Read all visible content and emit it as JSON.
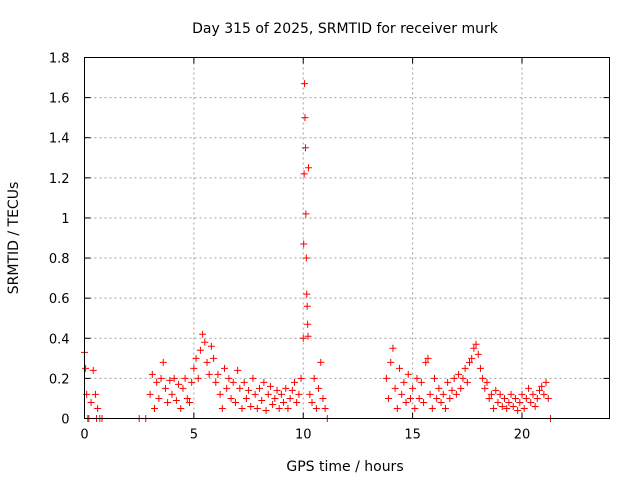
{
  "chart_data": {
    "type": "scatter",
    "title": "Day 315 of 2025, SRMTID for receiver murk",
    "xlabel": "GPS time / hours",
    "ylabel": "SRMTID / TECUs",
    "xlim": [
      0,
      24
    ],
    "ylim": [
      0,
      1.8
    ],
    "xticks": [
      0,
      5,
      10,
      15,
      20
    ],
    "yticks": [
      0,
      0.2,
      0.4,
      0.6,
      0.8,
      1,
      1.2,
      1.4,
      1.6,
      1.8
    ],
    "xtick_labels": [
      "0",
      "5",
      "10",
      "15",
      "20"
    ],
    "ytick_labels": [
      "0",
      "0.2",
      "0.4",
      "0.6",
      "0.8",
      "1",
      "1.2",
      "1.4",
      "1.6",
      "1.8"
    ],
    "marker": "+",
    "color": "#ff0000",
    "grid": true,
    "series": [
      {
        "name": "SRMTID",
        "x": [
          0.0,
          0.05,
          0.1,
          0.15,
          0.2,
          0.3,
          0.4,
          0.5,
          0.55,
          0.6,
          0.7,
          0.8,
          2.5,
          2.8,
          3.0,
          3.1,
          3.2,
          3.3,
          3.4,
          3.5,
          3.6,
          3.7,
          3.8,
          3.9,
          4.0,
          4.1,
          4.2,
          4.3,
          4.4,
          4.5,
          4.6,
          4.7,
          4.8,
          4.9,
          5.0,
          5.1,
          5.2,
          5.3,
          5.4,
          5.5,
          5.6,
          5.7,
          5.8,
          5.9,
          6.0,
          6.1,
          6.2,
          6.3,
          6.4,
          6.5,
          6.6,
          6.7,
          6.8,
          6.9,
          7.0,
          7.1,
          7.2,
          7.3,
          7.4,
          7.5,
          7.6,
          7.7,
          7.8,
          7.9,
          8.0,
          8.1,
          8.2,
          8.3,
          8.4,
          8.5,
          8.6,
          8.7,
          8.8,
          8.9,
          9.0,
          9.1,
          9.2,
          9.3,
          9.4,
          9.5,
          9.6,
          9.7,
          9.8,
          9.9,
          10.0,
          10.02,
          10.04,
          10.06,
          10.08,
          10.1,
          10.12,
          10.14,
          10.16,
          10.18,
          10.2,
          10.22,
          10.24,
          10.3,
          10.4,
          10.5,
          10.6,
          10.7,
          10.8,
          10.9,
          11.0,
          11.1,
          13.8,
          13.9,
          14.0,
          14.1,
          14.2,
          14.3,
          14.4,
          14.5,
          14.6,
          14.7,
          14.8,
          14.9,
          15.0,
          15.1,
          15.2,
          15.3,
          15.4,
          15.5,
          15.6,
          15.7,
          15.8,
          15.9,
          16.0,
          16.1,
          16.2,
          16.3,
          16.4,
          16.5,
          16.6,
          16.7,
          16.8,
          16.9,
          17.0,
          17.1,
          17.2,
          17.3,
          17.4,
          17.5,
          17.6,
          17.7,
          17.8,
          17.9,
          18.0,
          18.1,
          18.2,
          18.3,
          18.4,
          18.5,
          18.6,
          18.7,
          18.8,
          18.9,
          19.0,
          19.1,
          19.2,
          19.3,
          19.4,
          19.5,
          19.6,
          19.7,
          19.8,
          19.9,
          20.0,
          20.1,
          20.2,
          20.3,
          20.4,
          20.5,
          20.6,
          20.7,
          20.8,
          20.9,
          21.0,
          21.1,
          21.2,
          21.3
        ],
        "y": [
          0.33,
          0.25,
          0.12,
          0.0,
          0.0,
          0.08,
          0.24,
          0.12,
          0.0,
          0.05,
          0.0,
          0.0,
          0.0,
          0.0,
          0.12,
          0.22,
          0.05,
          0.18,
          0.1,
          0.2,
          0.28,
          0.15,
          0.08,
          0.19,
          0.12,
          0.2,
          0.09,
          0.17,
          0.05,
          0.15,
          0.2,
          0.1,
          0.08,
          0.18,
          0.25,
          0.3,
          0.2,
          0.34,
          0.42,
          0.38,
          0.28,
          0.22,
          0.36,
          0.3,
          0.18,
          0.22,
          0.12,
          0.05,
          0.25,
          0.15,
          0.2,
          0.1,
          0.18,
          0.08,
          0.24,
          0.15,
          0.05,
          0.18,
          0.1,
          0.14,
          0.06,
          0.2,
          0.12,
          0.05,
          0.15,
          0.09,
          0.18,
          0.04,
          0.12,
          0.16,
          0.07,
          0.1,
          0.14,
          0.05,
          0.12,
          0.08,
          0.15,
          0.05,
          0.1,
          0.14,
          0.18,
          0.08,
          0.12,
          0.2,
          0.4,
          0.87,
          1.22,
          1.67,
          1.5,
          1.35,
          1.02,
          0.8,
          0.62,
          0.56,
          0.47,
          0.41,
          1.25,
          0.12,
          0.08,
          0.2,
          0.05,
          0.15,
          0.28,
          0.1,
          0.05,
          0.0,
          0.2,
          0.1,
          0.28,
          0.35,
          0.15,
          0.05,
          0.25,
          0.12,
          0.18,
          0.08,
          0.22,
          0.1,
          0.15,
          0.05,
          0.2,
          0.1,
          0.18,
          0.08,
          0.28,
          0.3,
          0.12,
          0.05,
          0.2,
          0.1,
          0.15,
          0.08,
          0.12,
          0.05,
          0.18,
          0.1,
          0.14,
          0.2,
          0.12,
          0.22,
          0.15,
          0.2,
          0.25,
          0.18,
          0.28,
          0.3,
          0.35,
          0.37,
          0.32,
          0.25,
          0.2,
          0.15,
          0.18,
          0.1,
          0.12,
          0.05,
          0.14,
          0.08,
          0.12,
          0.06,
          0.1,
          0.05,
          0.08,
          0.12,
          0.06,
          0.1,
          0.04,
          0.08,
          0.12,
          0.05,
          0.1,
          0.15,
          0.08,
          0.12,
          0.06,
          0.1,
          0.14,
          0.16,
          0.12,
          0.18,
          0.1,
          0.0
        ]
      }
    ]
  }
}
